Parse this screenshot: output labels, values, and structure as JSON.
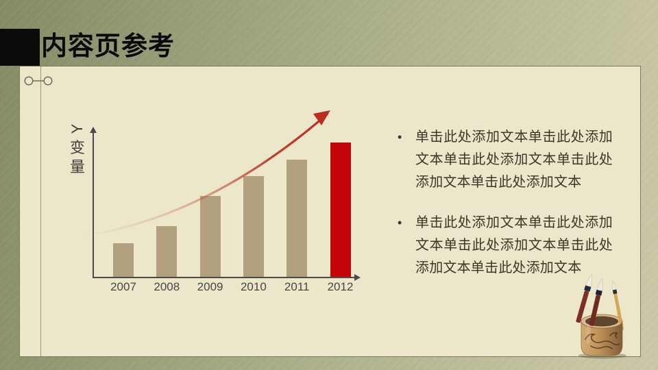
{
  "slide": {
    "title": "内容页参考",
    "bullet_glyph": "•",
    "bullets": [
      "单击此处添加文本单击此处添加文本单击此处添加文本单击此处添加文本单击此处添加文本",
      "单击此处添加文本单击此处添加文本单击此处添加文本单击此处添加文本单击此处添加文本"
    ],
    "colors": {
      "background_olive": "#9aa07a",
      "panel_background": "#ece7ca",
      "panel_border": "#777b56",
      "title_block": "#0b0b09",
      "title_text": "#0a0a0a",
      "body_text": "#3e3528",
      "bar": "#b29f7e",
      "bar_highlight": "#c30509",
      "trend_arrow": "#b92d20",
      "axis": "#4a4a4a"
    },
    "footer_illustration": "brush-pot-with-calligraphy-brushes"
  },
  "chart_data": {
    "type": "bar",
    "categories": [
      "2007",
      "2008",
      "2009",
      "2010",
      "2011",
      "2012"
    ],
    "values": [
      25,
      38,
      60,
      75,
      87,
      100
    ],
    "values_note": "estimated relative heights; no numeric labels shown",
    "title": "",
    "xlabel": "",
    "ylabel": "Y变量",
    "ylim": [
      0,
      100
    ],
    "grid": false,
    "legend": false,
    "highlight_index": 5,
    "annotations": [
      "red rising trend arrow from lower-left to upper-right"
    ]
  }
}
